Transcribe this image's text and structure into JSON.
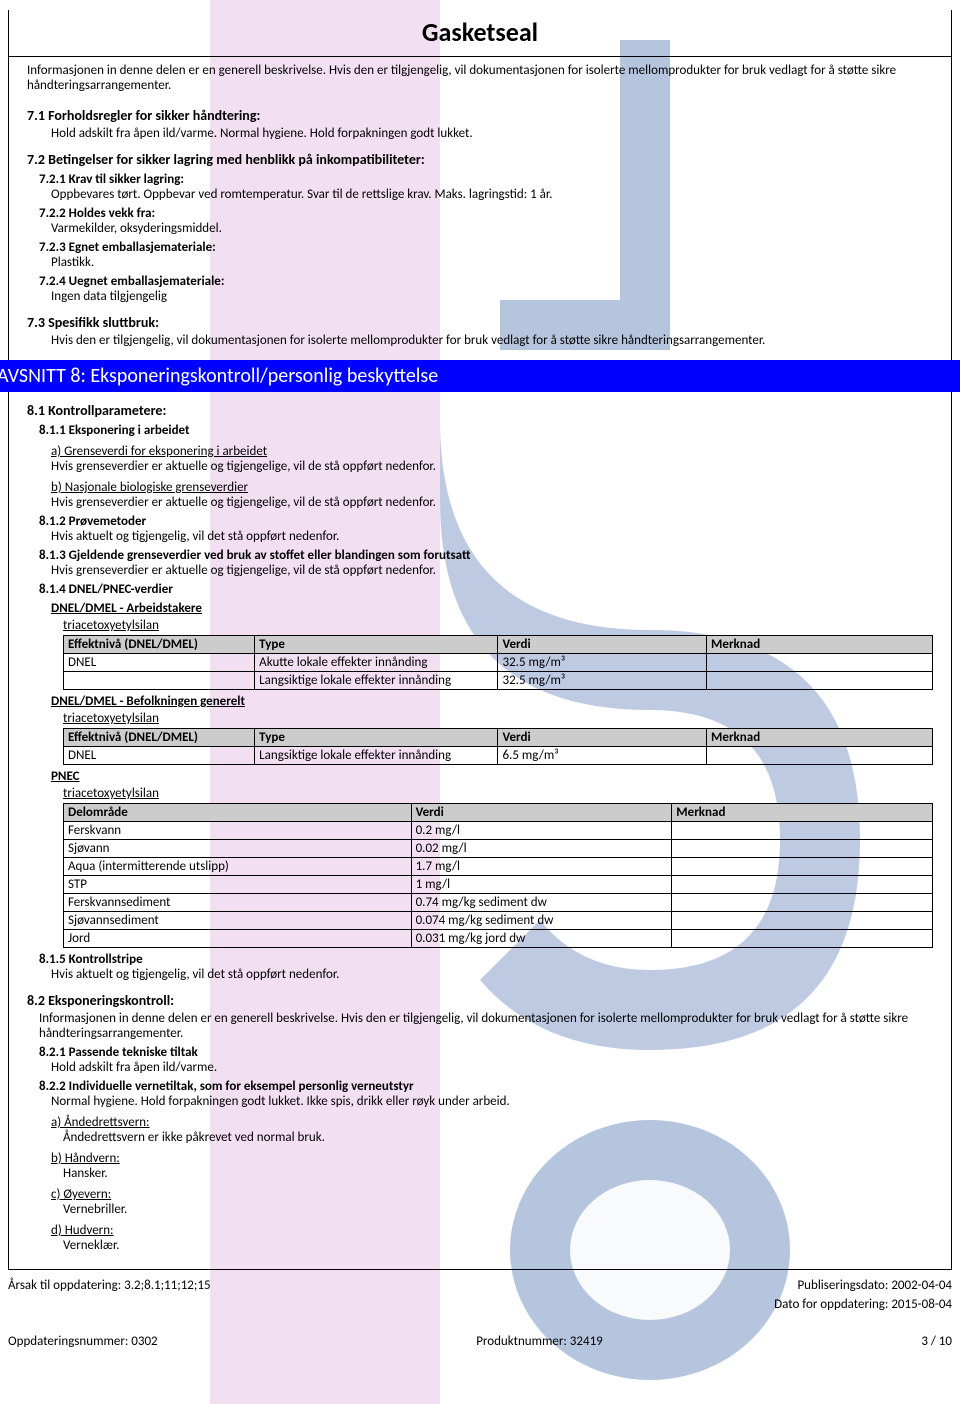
{
  "title": "Gasketseal",
  "intro": "Informasjonen in denne delen er en generell beskrivelse. Hvis den er tilgjengelig, vil dokumentasjonen for isolerte mellomprodukter for bruk vedlagt for å støtte sikre håndteringsarrangementer.",
  "s71": {
    "heading": "7.1 Forholdsregler for sikker håndtering:",
    "body": "Hold adskilt fra åpen ild/varme. Normal hygiene. Hold forpakningen godt lukket."
  },
  "s72": {
    "heading": "7.2 Betingelser for sikker lagring med henblikk på inkompatibiliteter:",
    "s721h": "7.2.1 Krav til sikker lagring:",
    "s721b": "Oppbevares tørt. Oppbevar ved romtemperatur. Svar til de rettslige krav. Maks. lagringstid: 1 år.",
    "s722h": "7.2.2 Holdes vekk fra:",
    "s722b": "Varmekilder, oksyderingsmiddel.",
    "s723h": "7.2.3 Egnet emballasjemateriale:",
    "s723b": "Plastikk.",
    "s724h": "7.2.4 Uegnet emballasjemateriale:",
    "s724b": "Ingen data tilgjengelig"
  },
  "s73": {
    "heading": "7.3 Spesifikk sluttbruk:",
    "body": "Hvis den er tilgjengelig, vil dokumentasjonen for isolerte mellomprodukter for bruk vedlagt for å støtte sikre håndteringsarrangementer."
  },
  "avsnitt8": "AVSNITT 8: Eksponeringskontroll/personlig beskyttelse",
  "s81": {
    "heading": "8.1 Kontrollparametere:",
    "s811h": "8.1.1 Eksponering i arbeidet",
    "s811a": "a) Grenseverdi for eksponering i arbeidet",
    "s811ab": "Hvis grenseverdier er aktuelle og tigjengelige, vil de stå oppført nedenfor.",
    "s811b": "b) Nasjonale biologiske grenseverdier",
    "s811bb": "Hvis grenseverdier er aktuelle og tigjengelige, vil de stå oppført nedenfor.",
    "s812h": "8.1.2 Prøvemetoder",
    "s812b": "Hvis aktuelt og tigjengelig, vil det stå oppført nedenfor.",
    "s813h": "8.1.3 Gjeldende grenseverdier ved bruk av stoffet eller blandingen som forutsatt",
    "s813b": "Hvis grenseverdier er aktuelle og tigjengelige, vil de stå oppført nedenfor.",
    "s814h": "8.1.4 DNEL/PNEC-verdier",
    "dnel_work": "DNEL/DMEL - Arbeidstakere",
    "substance": "triacetoxyetylsilan",
    "dnel_pop": "DNEL/DMEL - Befolkningen generelt",
    "pnec": "PNEC",
    "s815h": "8.1.5 Kontrollstripe",
    "s815b": "Hvis aktuelt og tigjengelig, vil det stå oppført nedenfor."
  },
  "table1": {
    "headers": [
      "Effektnivå (DNEL/DMEL)",
      "Type",
      "Verdi",
      "Merknad"
    ],
    "widths": [
      "22%",
      "28%",
      "24%",
      "26%"
    ],
    "rows": [
      [
        "DNEL",
        "Akutte lokale effekter innånding",
        "32.5 mg/m³",
        ""
      ],
      [
        "",
        "Langsiktige lokale effekter innånding",
        "32.5 mg/m³",
        ""
      ]
    ]
  },
  "table2": {
    "headers": [
      "Effektnivå (DNEL/DMEL)",
      "Type",
      "Verdi",
      "Merknad"
    ],
    "widths": [
      "22%",
      "28%",
      "24%",
      "26%"
    ],
    "rows": [
      [
        "DNEL",
        "Langsiktige lokale effekter innånding",
        "6.5 mg/m³",
        ""
      ]
    ]
  },
  "table3": {
    "headers": [
      "Delområde",
      "Verdi",
      "Merknad"
    ],
    "widths": [
      "40%",
      "30%",
      "30%"
    ],
    "rows": [
      [
        "Ferskvann",
        "0.2 mg/l",
        ""
      ],
      [
        "Sjøvann",
        "0.02 mg/l",
        ""
      ],
      [
        "Aqua (intermitterende utslipp)",
        "1.7 mg/l",
        ""
      ],
      [
        "STP",
        "1 mg/l",
        ""
      ],
      [
        "Ferskvannsediment",
        "0.74 mg/kg sediment dw",
        ""
      ],
      [
        "Sjøvannsediment",
        "0.074 mg/kg sediment dw",
        ""
      ],
      [
        "Jord",
        "0.031 mg/kg jord dw",
        ""
      ]
    ]
  },
  "s82": {
    "heading": "8.2 Eksponeringskontroll:",
    "intro": "Informasjonen in denne delen er en generell beskrivelse. Hvis den er tilgjengelig, vil dokumentasjonen for isolerte mellomprodukter for bruk vedlagt for å støtte sikre håndteringsarrangementer.",
    "s821h": "8.2.1 Passende tekniske tiltak",
    "s821b": "Hold adskilt fra åpen ild/varme.",
    "s822h": "8.2.2 Individuelle vernetiltak, som for eksempel personlig verneutstyr",
    "s822b": "Normal hygiene. Hold forpakningen godt lukket. Ikke spis, drikk eller røyk under arbeid.",
    "ah": "a) Åndedrettsvern:",
    "ab": "Åndedrettsvern er ikke påkrevet ved normal bruk.",
    "bh": "b) Håndvern:",
    "bb": "Hansker.",
    "ch": "c) Øyevern:",
    "cb": "Vernebriller.",
    "dh": "d) Hudvern:",
    "db": "Verneklær."
  },
  "footer": {
    "reason": "Årsak til oppdatering: 3.2;8.1;11;12;15",
    "pubdate": "Publiseringsdato: 2002-04-04",
    "upddate": "Dato for oppdatering: 2015-08-04",
    "updnum": "Oppdateringsnummer: 0302",
    "prodnum": "Produktnummer: 32419",
    "page": "3 / 10"
  },
  "colors": {
    "avsnitt_bg": "#0000ff",
    "table_header_bg": "#cccccc",
    "watermark_pink": "#e8c5e8",
    "watermark_blue": "#7a95c4"
  }
}
